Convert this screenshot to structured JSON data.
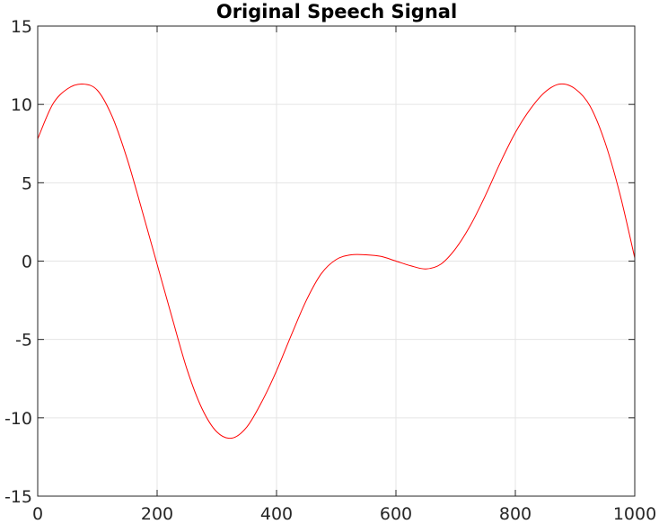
{
  "chart_data": {
    "type": "line",
    "title": "Original Speech Signal",
    "xlabel": "",
    "ylabel": "",
    "xlim": [
      0,
      1000
    ],
    "ylim": [
      -15,
      15
    ],
    "x_ticks": [
      0,
      200,
      400,
      600,
      800,
      1000
    ],
    "y_ticks": [
      15,
      10,
      5,
      0,
      -5,
      -10,
      -15
    ],
    "x_tick_labels": [
      "0",
      "200",
      "400",
      "600",
      "800",
      "1000"
    ],
    "y_tick_labels": [
      "15",
      "10",
      "5",
      "0",
      "-5",
      "-10",
      "-15"
    ],
    "grid": true,
    "legend": "none",
    "series": [
      {
        "color": "#ff0000",
        "x": [
          0,
          25,
          50,
          75,
          100,
          125,
          150,
          175,
          200,
          225,
          250,
          275,
          300,
          325,
          350,
          375,
          400,
          425,
          450,
          475,
          500,
          525,
          550,
          575,
          600,
          625,
          650,
          675,
          700,
          725,
          750,
          775,
          800,
          825,
          850,
          875,
          900,
          925,
          950,
          975,
          1000
        ],
        "y": [
          7.8,
          10.0,
          11.0,
          11.3,
          10.9,
          9.2,
          6.5,
          3.2,
          -0.2,
          -3.6,
          -6.9,
          -9.4,
          -10.9,
          -11.3,
          -10.6,
          -9.0,
          -7.0,
          -4.7,
          -2.5,
          -0.8,
          0.1,
          0.4,
          0.4,
          0.3,
          0.0,
          -0.3,
          -0.5,
          -0.2,
          0.8,
          2.3,
          4.2,
          6.3,
          8.2,
          9.7,
          10.8,
          11.3,
          11.0,
          9.9,
          7.6,
          4.3,
          0.2
        ]
      }
    ]
  },
  "colors": {
    "series": "#ff0000",
    "grid": "#e5e5e5",
    "axes": "#262626",
    "background": "#ffffff"
  }
}
